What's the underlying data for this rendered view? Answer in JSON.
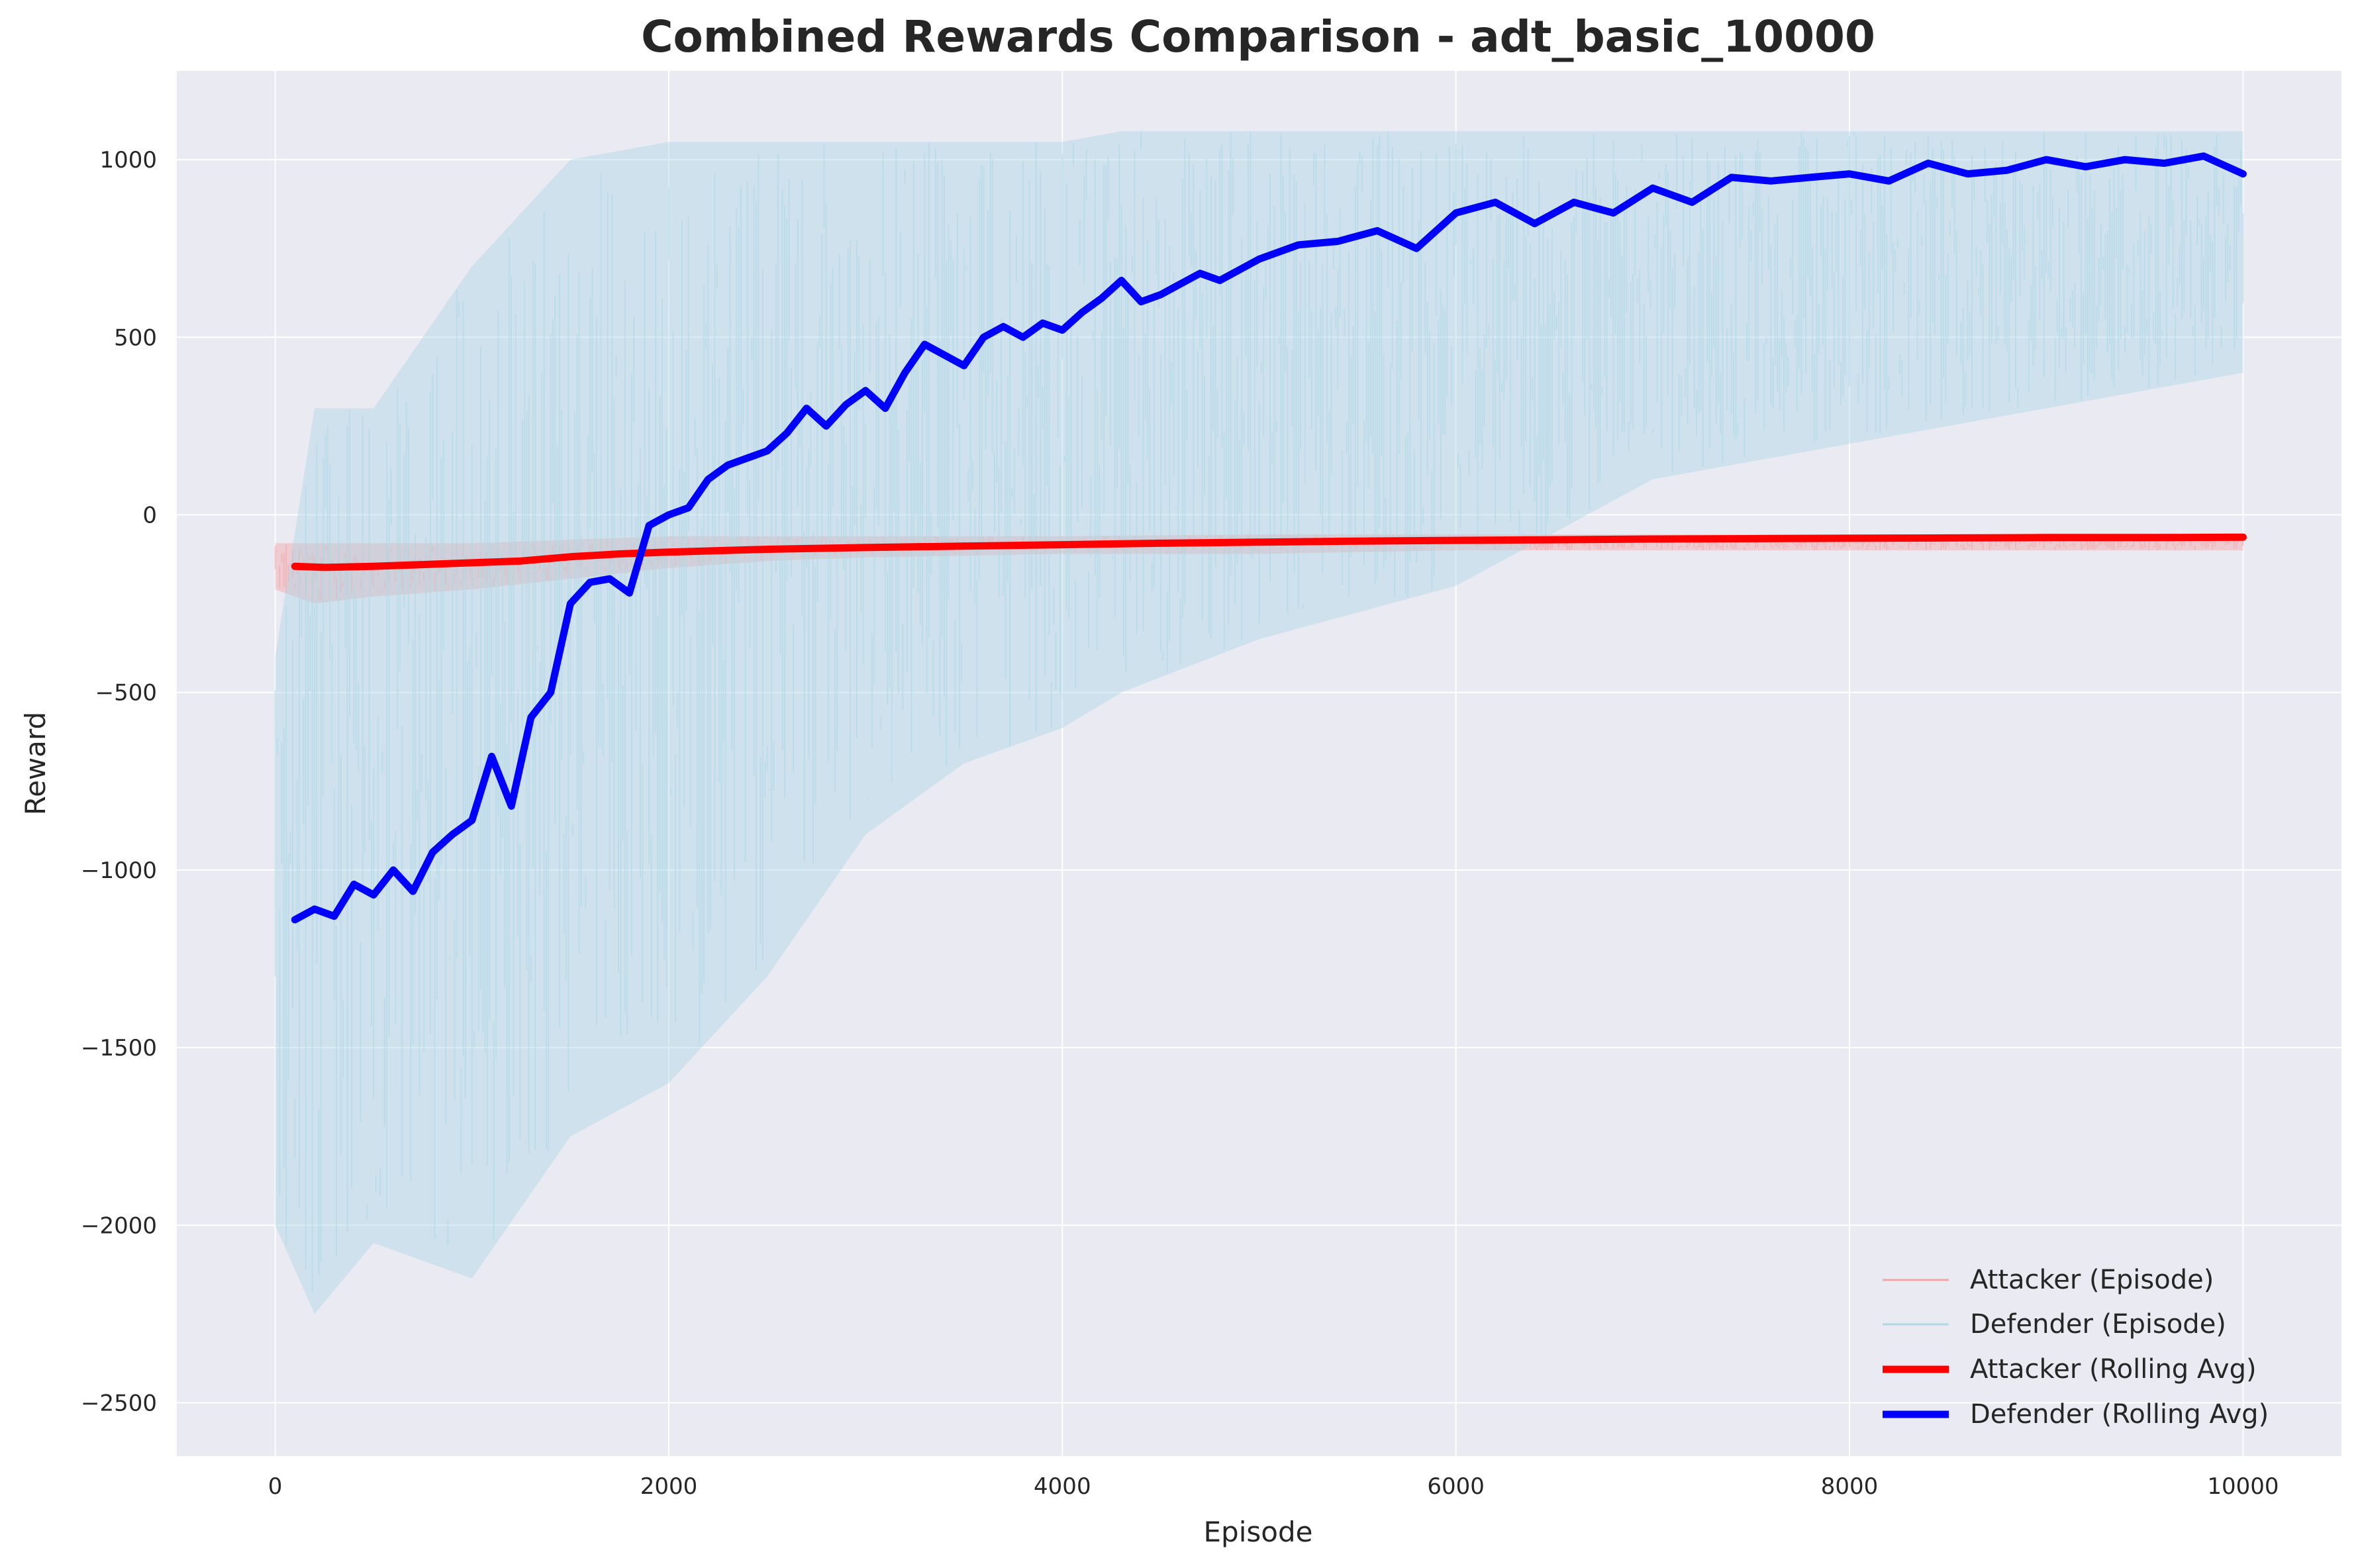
{
  "chart_data": {
    "type": "line",
    "title": "Combined Rewards Comparison - adt_basic_10000",
    "xlabel": "Episode",
    "ylabel": "Reward",
    "xlim": [
      -500,
      10500
    ],
    "ylim": [
      -2650,
      1250
    ],
    "x_ticks": [
      0,
      2000,
      4000,
      6000,
      8000,
      10000
    ],
    "x_tick_labels": [
      "0",
      "2000",
      "4000",
      "6000",
      "8000",
      "10000"
    ],
    "y_ticks": [
      -2500,
      -2000,
      -1500,
      -1000,
      -500,
      0,
      500,
      1000
    ],
    "y_tick_labels": [
      "−2500",
      "−2000",
      "−1500",
      "−1000",
      "−500",
      "0",
      "500",
      "1000"
    ],
    "grid": true,
    "legend_position": "bottom-right",
    "series": [
      {
        "name": "Attacker (Episode)",
        "kind": "episode",
        "color": "#f4a6a6",
        "x": [
          0,
          200,
          500,
          1000,
          1500,
          2000,
          2500,
          3000,
          4000,
          5000,
          6000,
          7000,
          8000,
          9000,
          10000
        ],
        "upper": [
          -80,
          -80,
          -80,
          -80,
          -70,
          -60,
          -60,
          -60,
          -60,
          -55,
          -55,
          -55,
          -55,
          -55,
          -55
        ],
        "lower": [
          -210,
          -250,
          -230,
          -210,
          -180,
          -150,
          -130,
          -120,
          -110,
          -110,
          -100,
          -100,
          -100,
          -100,
          -100
        ]
      },
      {
        "name": "Defender (Episode)",
        "kind": "episode",
        "color": "#add8e6",
        "x": [
          0,
          200,
          500,
          1000,
          1500,
          2000,
          2500,
          3000,
          3500,
          4000,
          4300,
          5000,
          6000,
          7000,
          8000,
          9000,
          10000
        ],
        "upper": [
          -400,
          300,
          300,
          700,
          1000,
          1050,
          1050,
          1050,
          1050,
          1050,
          1080,
          1080,
          1080,
          1080,
          1080,
          1080,
          1080
        ],
        "lower": [
          -2000,
          -2250,
          -2050,
          -2150,
          -1750,
          -1600,
          -1300,
          -900,
          -700,
          -600,
          -500,
          -350,
          -200,
          100,
          200,
          300,
          400
        ]
      },
      {
        "name": "Attacker (Rolling Avg)",
        "kind": "rolling",
        "color": "#ff0000",
        "x": [
          100,
          250,
          500,
          750,
          1000,
          1250,
          1500,
          1750,
          2000,
          2500,
          3000,
          3500,
          4000,
          4500,
          5000,
          5500,
          6000,
          6500,
          7000,
          7500,
          8000,
          8500,
          9000,
          9500,
          10000
        ],
        "values": [
          -145,
          -148,
          -145,
          -140,
          -135,
          -130,
          -118,
          -110,
          -105,
          -97,
          -92,
          -88,
          -84,
          -80,
          -77,
          -74,
          -72,
          -70,
          -68,
          -67,
          -66,
          -65,
          -64,
          -64,
          -63
        ]
      },
      {
        "name": "Defender (Rolling Avg)",
        "kind": "rolling",
        "color": "#0000ff",
        "x": [
          100,
          200,
          300,
          400,
          500,
          600,
          700,
          800,
          900,
          1000,
          1100,
          1200,
          1300,
          1400,
          1500,
          1600,
          1700,
          1800,
          1900,
          2000,
          2100,
          2200,
          2300,
          2400,
          2500,
          2600,
          2700,
          2800,
          2900,
          3000,
          3100,
          3200,
          3300,
          3400,
          3500,
          3600,
          3700,
          3800,
          3900,
          4000,
          4100,
          4200,
          4300,
          4400,
          4500,
          4600,
          4700,
          4800,
          4900,
          5000,
          5200,
          5400,
          5600,
          5800,
          6000,
          6200,
          6400,
          6600,
          6800,
          7000,
          7200,
          7400,
          7600,
          7800,
          8000,
          8200,
          8400,
          8600,
          8800,
          9000,
          9200,
          9400,
          9600,
          9800,
          10000
        ],
        "values": [
          -1140,
          -1110,
          -1130,
          -1040,
          -1070,
          -1000,
          -1060,
          -950,
          -900,
          -860,
          -680,
          -820,
          -570,
          -500,
          -250,
          -190,
          -180,
          -220,
          -30,
          0,
          20,
          100,
          140,
          160,
          180,
          230,
          300,
          250,
          310,
          350,
          300,
          400,
          480,
          450,
          420,
          500,
          530,
          500,
          540,
          520,
          570,
          610,
          660,
          600,
          620,
          650,
          680,
          660,
          690,
          720,
          760,
          770,
          800,
          750,
          850,
          880,
          820,
          880,
          850,
          920,
          880,
          950,
          940,
          950,
          960,
          940,
          990,
          960,
          970,
          1000,
          980,
          1000,
          990,
          1010,
          960
        ]
      }
    ]
  }
}
